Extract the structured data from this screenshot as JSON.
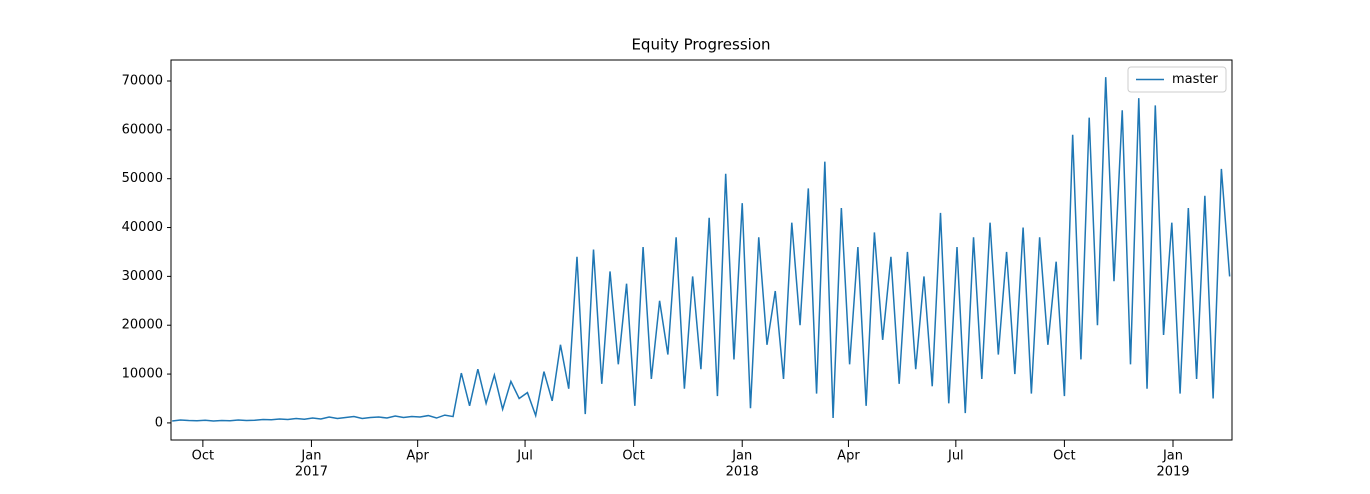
{
  "chart_data": {
    "type": "line",
    "title": "Equity Progression",
    "x": [
      "2016-09-05",
      "2016-09-12",
      "2016-09-19",
      "2016-09-26",
      "2016-10-03",
      "2016-10-10",
      "2016-10-17",
      "2016-10-24",
      "2016-10-31",
      "2016-11-07",
      "2016-11-14",
      "2016-11-21",
      "2016-11-28",
      "2016-12-05",
      "2016-12-12",
      "2016-12-19",
      "2016-12-26",
      "2017-01-02",
      "2017-01-09",
      "2017-01-16",
      "2017-01-23",
      "2017-01-30",
      "2017-02-06",
      "2017-02-13",
      "2017-02-20",
      "2017-02-27",
      "2017-03-06",
      "2017-03-13",
      "2017-03-20",
      "2017-03-27",
      "2017-04-03",
      "2017-04-10",
      "2017-04-17",
      "2017-04-24",
      "2017-05-01",
      "2017-05-08",
      "2017-05-15",
      "2017-05-22",
      "2017-05-29",
      "2017-06-05",
      "2017-06-12",
      "2017-06-19",
      "2017-06-26",
      "2017-07-03",
      "2017-07-10",
      "2017-07-17",
      "2017-07-24",
      "2017-07-31",
      "2017-08-07",
      "2017-08-14",
      "2017-08-21",
      "2017-08-28",
      "2017-09-04",
      "2017-09-11",
      "2017-09-18",
      "2017-09-25",
      "2017-10-02",
      "2017-10-09",
      "2017-10-16",
      "2017-10-23",
      "2017-10-30",
      "2017-11-06",
      "2017-11-13",
      "2017-11-20",
      "2017-11-27",
      "2017-12-04",
      "2017-12-11",
      "2017-12-18",
      "2017-12-25",
      "2018-01-01",
      "2018-01-08",
      "2018-01-15",
      "2018-01-22",
      "2018-01-29",
      "2018-02-05",
      "2018-02-12",
      "2018-02-19",
      "2018-02-26",
      "2018-03-05",
      "2018-03-12",
      "2018-03-19",
      "2018-03-26",
      "2018-04-02",
      "2018-04-09",
      "2018-04-16",
      "2018-04-23",
      "2018-04-30",
      "2018-05-07",
      "2018-05-14",
      "2018-05-21",
      "2018-05-28",
      "2018-06-04",
      "2018-06-11",
      "2018-06-18",
      "2018-06-25",
      "2018-07-02",
      "2018-07-09",
      "2018-07-16",
      "2018-07-23",
      "2018-07-30",
      "2018-08-06",
      "2018-08-13",
      "2018-08-20",
      "2018-08-27",
      "2018-09-03",
      "2018-09-10",
      "2018-09-17",
      "2018-09-24",
      "2018-10-01",
      "2018-10-08",
      "2018-10-15",
      "2018-10-22",
      "2018-10-29",
      "2018-11-05",
      "2018-11-12",
      "2018-11-19",
      "2018-11-26",
      "2018-12-03",
      "2018-12-10",
      "2018-12-17",
      "2018-12-24",
      "2018-12-31",
      "2019-01-07",
      "2019-01-14",
      "2019-01-21",
      "2019-01-28",
      "2019-02-04",
      "2019-02-11",
      "2019-02-18"
    ],
    "series": [
      {
        "name": "master",
        "color": "#1f77b4",
        "values": [
          400,
          600,
          500,
          450,
          550,
          400,
          500,
          450,
          600,
          500,
          550,
          700,
          650,
          800,
          700,
          900,
          750,
          1000,
          800,
          1200,
          900,
          1100,
          1300,
          900,
          1100,
          1200,
          1000,
          1400,
          1100,
          1300,
          1200,
          1500,
          1000,
          1600,
          1300,
          10200,
          3500,
          11000,
          4000,
          9800,
          2800,
          8500,
          5000,
          6200,
          1500,
          10500,
          4500,
          16000,
          7000,
          34000,
          1800,
          35500,
          8000,
          31000,
          12000,
          28500,
          3500,
          36000,
          9000,
          25000,
          14000,
          38000,
          7000,
          30000,
          11000,
          42000,
          5500,
          51000,
          13000,
          45000,
          3000,
          38000,
          16000,
          27000,
          9000,
          41000,
          20000,
          48000,
          6000,
          53500,
          1000,
          44000,
          12000,
          36000,
          3500,
          39000,
          17000,
          34000,
          8000,
          35000,
          11000,
          30000,
          7500,
          43000,
          4000,
          36000,
          2000,
          38000,
          9000,
          41000,
          14000,
          35000,
          10000,
          40000,
          6000,
          38000,
          16000,
          33000,
          5500,
          59000,
          13000,
          62500,
          20000,
          70800,
          29000,
          64000,
          12000,
          66500,
          7000,
          65000,
          18000,
          41000,
          6000,
          44000,
          9000,
          46500,
          5000,
          52000,
          30000
        ]
      }
    ],
    "xlim": [
      "2016-09-04",
      "2019-02-20"
    ],
    "xticks": [
      {
        "value": "2016-10-01",
        "label": "Oct"
      },
      {
        "value": "2017-01-01",
        "label": "Jan",
        "sublabel": "2017"
      },
      {
        "value": "2017-04-01",
        "label": "Apr"
      },
      {
        "value": "2017-07-01",
        "label": "Jul"
      },
      {
        "value": "2017-10-01",
        "label": "Oct"
      },
      {
        "value": "2018-01-01",
        "label": "Jan",
        "sublabel": "2018"
      },
      {
        "value": "2018-04-01",
        "label": "Apr"
      },
      {
        "value": "2018-07-01",
        "label": "Jul"
      },
      {
        "value": "2018-10-01",
        "label": "Oct"
      },
      {
        "value": "2019-01-01",
        "label": "Jan",
        "sublabel": "2019"
      }
    ],
    "ylim": [
      -3500,
      74300
    ],
    "yticks": [
      0,
      10000,
      20000,
      30000,
      40000,
      50000,
      60000,
      70000
    ],
    "legend": "upper right"
  }
}
